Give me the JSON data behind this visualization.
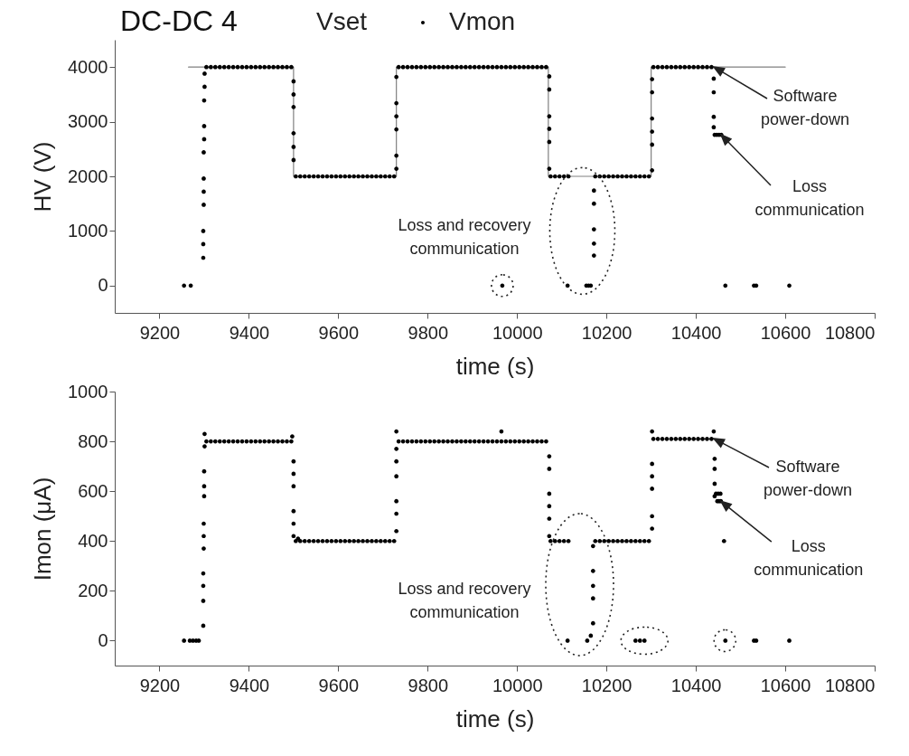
{
  "chart_data": [
    {
      "type": "scatter",
      "title": "DC-DC 4",
      "xlabel": "time (s)",
      "ylabel": "HV (V)",
      "xlim": [
        9100,
        10800
      ],
      "xticks": [
        9200,
        9400,
        9600,
        9800,
        10000,
        10200,
        10400,
        10600,
        10800
      ],
      "ylim": [
        -500,
        4500
      ],
      "yticks": [
        0,
        1000,
        2000,
        3000,
        4000
      ],
      "grid": false,
      "legend": "top",
      "series": [
        {
          "name": "Vset",
          "type": "line",
          "color": "#808080",
          "x": [
            9265,
            9500,
            9500,
            9730,
            9730,
            10070,
            10070,
            10300,
            10300,
            10600
          ],
          "values": [
            4000,
            4000,
            2000,
            2000,
            4000,
            4000,
            2000,
            2000,
            4000,
            4000
          ]
        },
        {
          "name": "Vmon",
          "color": "#000000",
          "marker": "circle",
          "x": [
            9255,
            9270,
            9298,
            9298,
            9298,
            9299,
            9299,
            9299,
            9299,
            9300,
            9300,
            9300,
            9301,
            9301,
            9305,
            9315,
            9325,
            9335,
            9345,
            9355,
            9365,
            9375,
            9385,
            9395,
            9405,
            9415,
            9425,
            9435,
            9445,
            9455,
            9465,
            9475,
            9485,
            9495,
            9500,
            9500,
            9500,
            9500,
            9500,
            9500,
            9505,
            9515,
            9525,
            9535,
            9545,
            9555,
            9565,
            9575,
            9585,
            9595,
            9605,
            9615,
            9625,
            9635,
            9645,
            9655,
            9665,
            9675,
            9685,
            9695,
            9705,
            9715,
            9725,
            9730,
            9730,
            9730,
            9730,
            9730,
            9730,
            9735,
            9745,
            9755,
            9765,
            9775,
            9785,
            9795,
            9805,
            9815,
            9825,
            9835,
            9845,
            9855,
            9865,
            9875,
            9885,
            9895,
            9905,
            9915,
            9925,
            9935,
            9945,
            9955,
            9965,
            9975,
            9985,
            9995,
            10005,
            10015,
            10025,
            10035,
            10045,
            10055,
            10065,
            9967,
            10072,
            10072,
            10072,
            10072,
            10072,
            10072,
            10075,
            10085,
            10095,
            10105,
            10115,
            10113,
            10155,
            10160,
            10165,
            10172,
            10172,
            10172,
            10172,
            10172,
            10175,
            10185,
            10195,
            10205,
            10215,
            10225,
            10235,
            10245,
            10255,
            10265,
            10275,
            10285,
            10295,
            10302,
            10302,
            10302,
            10302,
            10302,
            10302,
            10305,
            10315,
            10325,
            10335,
            10345,
            10355,
            10365,
            10375,
            10385,
            10395,
            10405,
            10415,
            10425,
            10435,
            10440,
            10440,
            10440,
            10440,
            10442,
            10447,
            10452,
            10457,
            10466,
            10530,
            10535,
            10609
          ],
          "values": [
            0,
            0,
            510,
            760,
            1000,
            1480,
            1720,
            1960,
            2440,
            2680,
            2920,
            3390,
            3640,
            3880,
            4000,
            4000,
            4000,
            4000,
            4000,
            4000,
            4000,
            4000,
            4000,
            4000,
            4000,
            4000,
            4000,
            4000,
            4000,
            4000,
            4000,
            4000,
            4000,
            4000,
            3740,
            3500,
            3270,
            2790,
            2540,
            2300,
            2000,
            2000,
            2000,
            2000,
            2000,
            2000,
            2000,
            2000,
            2000,
            2000,
            2000,
            2000,
            2000,
            2000,
            2000,
            2000,
            2000,
            2000,
            2000,
            2000,
            2000,
            2000,
            2000,
            2140,
            2380,
            2860,
            3100,
            3340,
            3820,
            4000,
            4000,
            4000,
            4000,
            4000,
            4000,
            4000,
            4000,
            4000,
            4000,
            4000,
            4000,
            4000,
            4000,
            4000,
            4000,
            4000,
            4000,
            4000,
            4000,
            4000,
            4000,
            4000,
            4000,
            4000,
            4000,
            4000,
            4000,
            4000,
            4000,
            4000,
            4000,
            4000,
            4000,
            0,
            3830,
            3590,
            3100,
            2870,
            2630,
            2140,
            2000,
            2000,
            2000,
            2000,
            2000,
            0,
            0,
            0,
            0,
            550,
            770,
            1030,
            1500,
            1740,
            2000,
            2000,
            2000,
            2000,
            2000,
            2000,
            2000,
            2000,
            2000,
            2000,
            2000,
            2000,
            2000,
            2110,
            2580,
            2820,
            3060,
            3540,
            3780,
            4000,
            4000,
            4000,
            4000,
            4000,
            4000,
            4000,
            4000,
            4000,
            4000,
            4000,
            4000,
            4000,
            4000,
            3790,
            3540,
            3090,
            2900,
            2760,
            2760,
            2760,
            2760,
            0,
            0,
            0,
            0
          ]
        }
      ],
      "annotations": [
        "Software power-down",
        "Loss communication",
        "Loss and recovery communication"
      ]
    },
    {
      "type": "scatter",
      "xlabel": "time (s)",
      "ylabel": "Imon (μA)",
      "xlim": [
        9100,
        10800
      ],
      "xticks": [
        9200,
        9400,
        9600,
        9800,
        10000,
        10200,
        10400,
        10600,
        10800
      ],
      "ylim": [
        -100,
        1000
      ],
      "yticks": [
        0,
        200,
        400,
        600,
        800,
        1000
      ],
      "grid": false,
      "marker": "circle",
      "series": [
        {
          "color": "#000000",
          "x": [
            9255,
            9268,
            9275,
            9282,
            9288,
            9298,
            9298,
            9298,
            9298,
            9299,
            9299,
            9299,
            9300,
            9300,
            9300,
            9301,
            9301,
            9305,
            9315,
            9325,
            9335,
            9345,
            9355,
            9365,
            9375,
            9385,
            9395,
            9405,
            9415,
            9425,
            9435,
            9445,
            9455,
            9465,
            9475,
            9485,
            9495,
            9497,
            9500,
            9500,
            9500,
            9500,
            9500,
            9500,
            9510,
            9505,
            9515,
            9525,
            9535,
            9545,
            9555,
            9565,
            9575,
            9585,
            9595,
            9605,
            9615,
            9625,
            9635,
            9645,
            9655,
            9665,
            9675,
            9685,
            9695,
            9705,
            9715,
            9725,
            9730,
            9730,
            9730,
            9730,
            9730,
            9730,
            9730,
            9735,
            9745,
            9755,
            9765,
            9775,
            9785,
            9795,
            9805,
            9815,
            9825,
            9835,
            9845,
            9855,
            9865,
            9875,
            9885,
            9895,
            9905,
            9915,
            9925,
            9935,
            9945,
            9955,
            9965,
            9975,
            9985,
            9995,
            10005,
            10015,
            10025,
            10035,
            10045,
            10055,
            10065,
            9965,
            10072,
            10072,
            10072,
            10072,
            10072,
            10072,
            10075,
            10085,
            10095,
            10105,
            10115,
            10113,
            10157,
            10165,
            10170,
            10170,
            10170,
            10170,
            10170,
            10175,
            10185,
            10195,
            10205,
            10215,
            10225,
            10235,
            10245,
            10255,
            10265,
            10275,
            10285,
            10295,
            10265,
            10275,
            10285,
            10302,
            10302,
            10302,
            10302,
            10302,
            10302,
            10305,
            10315,
            10325,
            10335,
            10345,
            10355,
            10365,
            10375,
            10385,
            10395,
            10405,
            10415,
            10425,
            10435,
            10440,
            10442,
            10442,
            10442,
            10442,
            10445,
            10450,
            10455,
            10448,
            10452,
            10456,
            10463,
            10466,
            10530,
            10535,
            10609
          ],
          "values": [
            0,
            0,
            0,
            0,
            0,
            60,
            160,
            220,
            270,
            370,
            420,
            470,
            580,
            620,
            680,
            780,
            830,
            800,
            800,
            800,
            800,
            800,
            800,
            800,
            800,
            800,
            800,
            800,
            800,
            800,
            800,
            800,
            800,
            800,
            800,
            800,
            800,
            820,
            720,
            670,
            620,
            520,
            470,
            420,
            410,
            400,
            400,
            400,
            400,
            400,
            400,
            400,
            400,
            400,
            400,
            400,
            400,
            400,
            400,
            400,
            400,
            400,
            400,
            400,
            400,
            400,
            400,
            400,
            440,
            510,
            560,
            660,
            720,
            770,
            840,
            800,
            800,
            800,
            800,
            800,
            800,
            800,
            800,
            800,
            800,
            800,
            800,
            800,
            800,
            800,
            800,
            800,
            800,
            800,
            800,
            800,
            800,
            800,
            800,
            800,
            800,
            800,
            800,
            800,
            800,
            800,
            800,
            800,
            800,
            840,
            740,
            690,
            590,
            540,
            490,
            420,
            400,
            400,
            400,
            400,
            400,
            0,
            0,
            20,
            70,
            170,
            220,
            280,
            380,
            400,
            400,
            400,
            400,
            400,
            400,
            400,
            400,
            400,
            400,
            400,
            400,
            400,
            0,
            0,
            0,
            450,
            500,
            610,
            660,
            710,
            840,
            810,
            810,
            810,
            810,
            810,
            810,
            810,
            810,
            810,
            810,
            810,
            810,
            810,
            810,
            840,
            730,
            690,
            630,
            580,
            590,
            590,
            590,
            560,
            560,
            560,
            400,
            0,
            0,
            0,
            0
          ]
        }
      ],
      "annotations": [
        "Software power-down",
        {
          "text": "Loss communication",
          "x": 10456,
          "y": 560
        },
        "Loss and recovery communication"
      ]
    }
  ]
}
